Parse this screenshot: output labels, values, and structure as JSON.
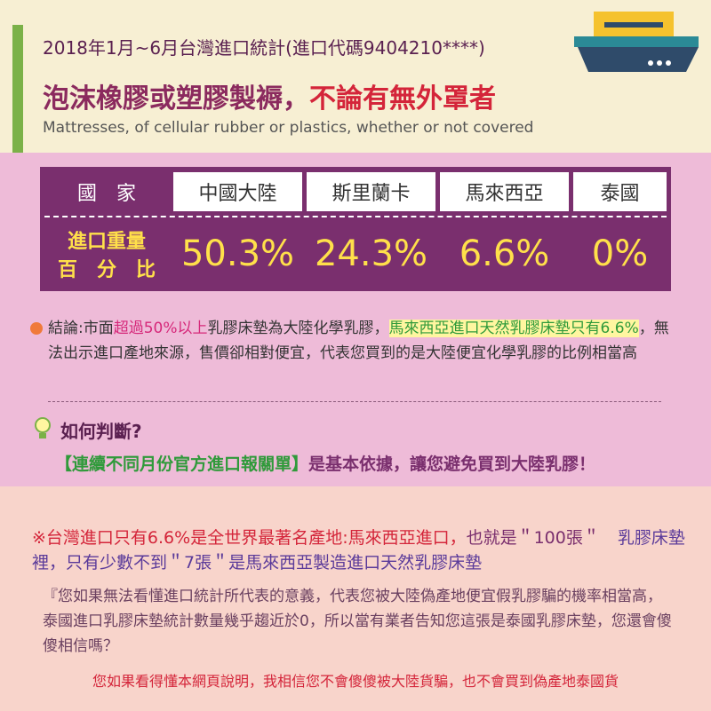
{
  "header": {
    "subtitle": "2018年1月~6月台灣進口統計(進口代碼9404210****)",
    "title_runs": [
      "泡沫橡膠或塑膠製褥，",
      "不論有無外罩者"
    ],
    "english": "Mattresses, of cellular rubber or plastics, whether or not covered"
  },
  "table": {
    "header": [
      "國　家",
      "中國大陸",
      "斯里蘭卡",
      "馬來西亞",
      "泰國"
    ],
    "row_label": [
      "進口重量",
      "百　分　比"
    ],
    "values": [
      "50.3%",
      "24.3%",
      "6.6%",
      "0%"
    ]
  },
  "conclusion": {
    "runs": [
      "結論:市面",
      "超過50%以上",
      "乳膠床墊為大陸化學乳膠，",
      "馬來西亞進口天然乳膠床墊只有6.6%",
      "，無法出示進口產地來源，售價卻相對便宜，代表您買到的是大陸便宜化學乳膠的比例相當高"
    ]
  },
  "howto": {
    "title": "如何判斷?",
    "runs": [
      "【連續不同月份官方進口報關單】",
      "是基本依據，讓您避免買到大陸乳膠！"
    ]
  },
  "note": {
    "runs": [
      "※台灣進口只有6.6%是全世界最著名產地:馬來西亞進口，",
      "也就是＂100張＂",
      "乳膠床墊裡，只有少數不到＂7張＂是馬來西亞製造進口天然乳膠床墊"
    ],
    "quote": "『您如果無法看懂進口統計所代表的意義，代表您被大陸偽產地便宜假乳膠騙的機率相當高，泰國進口乳膠床墊統計數量幾乎趨近於0，所以當有業者告知您這張是泰國乳膠床墊，您還會傻傻相信嗎？",
    "footer": "您如果看得懂本網頁說明，我相信您不會傻傻被大陸貨騙，也不會買到偽產地泰國貨"
  }
}
